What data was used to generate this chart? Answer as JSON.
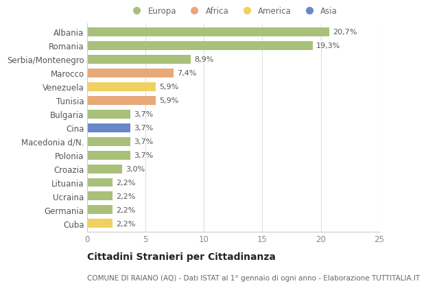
{
  "countries": [
    "Albania",
    "Romania",
    "Serbia/Montenegro",
    "Marocco",
    "Venezuela",
    "Tunisia",
    "Bulgaria",
    "Cina",
    "Macedonia d/N.",
    "Polonia",
    "Croazia",
    "Lituania",
    "Ucraina",
    "Germania",
    "Cuba"
  ],
  "values": [
    20.7,
    19.3,
    8.9,
    7.4,
    5.9,
    5.9,
    3.7,
    3.7,
    3.7,
    3.7,
    3.0,
    2.2,
    2.2,
    2.2,
    2.2
  ],
  "labels": [
    "20,7%",
    "19,3%",
    "8,9%",
    "7,4%",
    "5,9%",
    "5,9%",
    "3,7%",
    "3,7%",
    "3,7%",
    "3,7%",
    "3,0%",
    "2,2%",
    "2,2%",
    "2,2%",
    "2,2%"
  ],
  "categories": [
    "Europa",
    "Europa",
    "Europa",
    "Africa",
    "America",
    "Africa",
    "Europa",
    "Asia",
    "Europa",
    "Europa",
    "Europa",
    "Europa",
    "Europa",
    "Europa",
    "America"
  ],
  "colors": {
    "Europa": "#a8c07a",
    "Africa": "#e8a878",
    "America": "#f0d060",
    "Asia": "#6688c8"
  },
  "xlim": [
    0,
    25
  ],
  "xticks": [
    0,
    5,
    10,
    15,
    20,
    25
  ],
  "title": "Cittadini Stranieri per Cittadinanza",
  "subtitle": "COMUNE DI RAIANO (AQ) - Dati ISTAT al 1° gennaio di ogni anno - Elaborazione TUTTITALIA.IT",
  "bg_color": "#ffffff",
  "grid_color": "#dddddd",
  "bar_height": 0.65,
  "label_fontsize": 8,
  "ytick_fontsize": 8.5,
  "xtick_fontsize": 8.5,
  "title_fontsize": 10,
  "subtitle_fontsize": 7.5,
  "legend_order": [
    "Europa",
    "Africa",
    "America",
    "Asia"
  ]
}
